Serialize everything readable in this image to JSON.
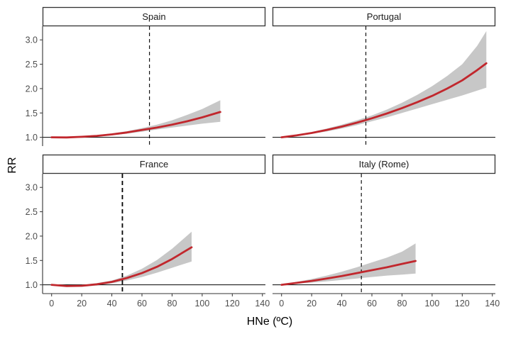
{
  "chart_data": {
    "type": "line",
    "layout": "facet-grid-2x2",
    "xlabel": "HNe (ºC)",
    "ylabel": "RR",
    "xlim": [
      -6,
      142
    ],
    "ylim": [
      0.82,
      3.28
    ],
    "x_ticks": [
      0,
      20,
      40,
      60,
      80,
      100,
      120,
      140
    ],
    "y_ticks": [
      1.0,
      1.5,
      2.0,
      2.5,
      3.0
    ],
    "y_tick_labels": [
      "1.0",
      "1.5",
      "2.0",
      "2.5",
      "3.0"
    ],
    "reference_line": 1.0,
    "colors": {
      "curve": "#c1272d",
      "band": "#c7c7c7",
      "line": "#000000"
    },
    "panels": [
      {
        "title": "Spain",
        "threshold": 65,
        "x": [
          0,
          10,
          20,
          30,
          40,
          50,
          60,
          70,
          80,
          90,
          100,
          112
        ],
        "rr": [
          1.0,
          0.998,
          1.01,
          1.03,
          1.06,
          1.1,
          1.15,
          1.2,
          1.26,
          1.33,
          1.41,
          1.52
        ],
        "lower": [
          1.0,
          0.993,
          1.0,
          1.015,
          1.04,
          1.075,
          1.115,
          1.16,
          1.2,
          1.24,
          1.28,
          1.32
        ],
        "upper": [
          1.0,
          1.003,
          1.02,
          1.045,
          1.08,
          1.125,
          1.19,
          1.26,
          1.35,
          1.46,
          1.58,
          1.76
        ]
      },
      {
        "title": "Portugal",
        "threshold": 56,
        "x": [
          0,
          10,
          20,
          30,
          40,
          50,
          60,
          70,
          80,
          90,
          100,
          110,
          120,
          130,
          136
        ],
        "rr": [
          1.0,
          1.04,
          1.09,
          1.15,
          1.22,
          1.3,
          1.39,
          1.49,
          1.6,
          1.72,
          1.85,
          2.0,
          2.17,
          2.38,
          2.52
        ],
        "lower": [
          1.0,
          1.03,
          1.07,
          1.12,
          1.18,
          1.25,
          1.33,
          1.41,
          1.5,
          1.59,
          1.68,
          1.77,
          1.86,
          1.96,
          2.02
        ],
        "upper": [
          1.0,
          1.05,
          1.11,
          1.18,
          1.26,
          1.35,
          1.45,
          1.57,
          1.71,
          1.87,
          2.05,
          2.26,
          2.5,
          2.88,
          3.18
        ]
      },
      {
        "title": "France",
        "threshold": 47,
        "x": [
          0,
          10,
          20,
          30,
          40,
          50,
          60,
          70,
          80,
          93
        ],
        "rr": [
          1.0,
          0.975,
          0.98,
          1.01,
          1.06,
          1.14,
          1.24,
          1.37,
          1.53,
          1.77
        ],
        "lower": [
          1.0,
          0.965,
          0.96,
          0.985,
          1.03,
          1.09,
          1.16,
          1.25,
          1.35,
          1.48
        ],
        "upper": [
          1.0,
          0.985,
          1.0,
          1.035,
          1.09,
          1.19,
          1.33,
          1.51,
          1.74,
          2.09
        ]
      },
      {
        "title": "Italy (Rome)",
        "threshold": 53,
        "x": [
          0,
          10,
          20,
          30,
          40,
          50,
          60,
          70,
          80,
          89
        ],
        "rr": [
          1.0,
          1.04,
          1.08,
          1.13,
          1.18,
          1.24,
          1.3,
          1.36,
          1.43,
          1.49
        ],
        "lower": [
          1.0,
          1.02,
          1.045,
          1.07,
          1.1,
          1.13,
          1.16,
          1.19,
          1.21,
          1.23
        ],
        "upper": [
          1.0,
          1.06,
          1.12,
          1.19,
          1.27,
          1.36,
          1.46,
          1.56,
          1.68,
          1.85
        ]
      }
    ]
  }
}
